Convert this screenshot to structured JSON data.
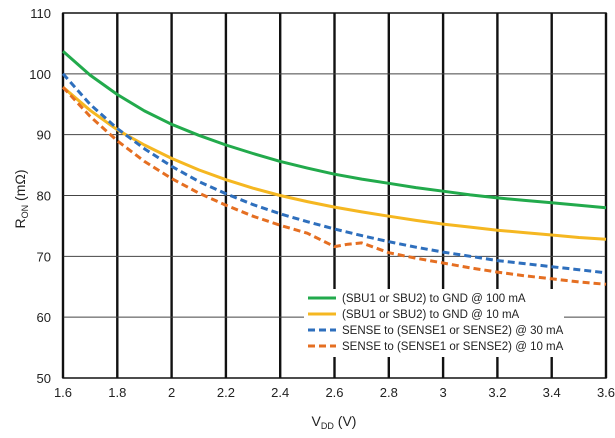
{
  "chart_data": {
    "type": "line",
    "title": "",
    "xlabel": {
      "main": "V",
      "sub": "DD",
      "unit": " (V)"
    },
    "ylabel": {
      "main": "R",
      "sub": "ON",
      "unit": " (mΩ)"
    },
    "xlim": [
      1.6,
      3.6
    ],
    "ylim": [
      50,
      110
    ],
    "x_ticks": [
      1.6,
      1.8,
      2,
      2.2,
      2.4,
      2.6,
      2.8,
      3,
      3.2,
      3.4,
      3.6
    ],
    "x_tick_labels": [
      "1.6",
      "1.8",
      "2",
      "2.2",
      "2.4",
      "2.6",
      "2.8",
      "3",
      "3.2",
      "3.4",
      "3.6"
    ],
    "y_ticks": [
      50,
      60,
      70,
      80,
      90,
      100,
      110
    ],
    "y_tick_labels": [
      "50",
      "60",
      "70",
      "80",
      "90",
      "100",
      "110"
    ],
    "grid": {
      "vertical": true,
      "horizontal": true
    },
    "legend_position": "bottom-right",
    "series": [
      {
        "name": "(SBU1 or SBU2) to GND @ 100 mA",
        "color": "#22aa4c",
        "dashed": false,
        "x": [
          1.6,
          1.7,
          1.8,
          1.9,
          2.0,
          2.1,
          2.2,
          2.3,
          2.4,
          2.5,
          2.6,
          2.7,
          2.8,
          2.9,
          3.0,
          3.1,
          3.2,
          3.3,
          3.4,
          3.5,
          3.6
        ],
        "y": [
          103.7,
          99.8,
          96.6,
          93.9,
          91.7,
          89.9,
          88.3,
          86.9,
          85.6,
          84.5,
          83.5,
          82.7,
          82.0,
          81.3,
          80.7,
          80.1,
          79.6,
          79.2,
          78.8,
          78.4,
          78.0
        ]
      },
      {
        "name": "(SBU1 or SBU2) to GND @ 10 mA",
        "color": "#f5b721",
        "dashed": false,
        "x": [
          1.6,
          1.7,
          1.8,
          1.9,
          2.0,
          2.1,
          2.2,
          2.3,
          2.4,
          2.5,
          2.6,
          2.7,
          2.8,
          2.9,
          3.0,
          3.1,
          3.2,
          3.3,
          3.4,
          3.5,
          3.6
        ],
        "y": [
          97.8,
          94.0,
          90.8,
          88.3,
          86.1,
          84.2,
          82.6,
          81.2,
          80.0,
          79.0,
          78.1,
          77.3,
          76.6,
          75.9,
          75.3,
          74.8,
          74.3,
          73.9,
          73.5,
          73.1,
          72.8
        ]
      },
      {
        "name": "SENSE to (SENSE1 or SENSE2) @ 30 mA",
        "color": "#2e6fbd",
        "dashed": true,
        "x": [
          1.6,
          1.7,
          1.8,
          1.9,
          2.0,
          2.1,
          2.2,
          2.3,
          2.4,
          2.5,
          2.6,
          2.7,
          2.8,
          2.9,
          3.0,
          3.1,
          3.2,
          3.3,
          3.4,
          3.5,
          3.6
        ],
        "y": [
          100.0,
          95.0,
          91.0,
          87.7,
          84.8,
          82.3,
          80.3,
          78.5,
          77.0,
          75.7,
          74.5,
          73.4,
          72.4,
          71.5,
          70.7,
          70.0,
          69.3,
          68.8,
          68.3,
          67.8,
          67.3
        ]
      },
      {
        "name": "SENSE to (SENSE1 or SENSE2) @ 10 mA",
        "color": "#e56f22",
        "dashed": true,
        "x": [
          1.6,
          1.7,
          1.8,
          1.9,
          2.0,
          2.1,
          2.2,
          2.3,
          2.4,
          2.5,
          2.6,
          2.65,
          2.7,
          2.8,
          2.9,
          3.0,
          3.1,
          3.2,
          3.3,
          3.4,
          3.5,
          3.6
        ],
        "y": [
          97.8,
          93.0,
          89.0,
          85.6,
          82.8,
          80.4,
          78.4,
          76.6,
          75.1,
          73.8,
          71.6,
          72.0,
          72.2,
          70.6,
          69.7,
          68.9,
          68.1,
          67.4,
          66.8,
          66.3,
          65.8,
          65.4
        ]
      }
    ]
  }
}
